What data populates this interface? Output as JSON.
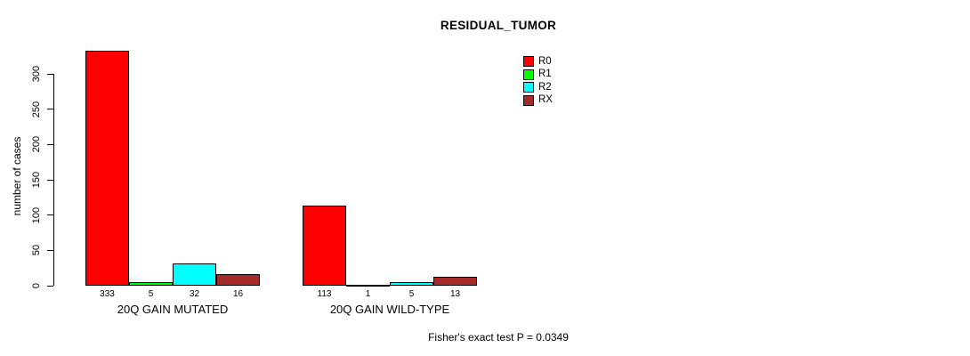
{
  "chart_data": {
    "type": "bar",
    "title": "RESIDUAL_TUMOR",
    "ylabel": "number of cases",
    "ylim": [
      0,
      300
    ],
    "yticks": [
      0,
      50,
      100,
      150,
      200,
      250,
      300
    ],
    "grid": false,
    "legend_position": "top-center-right",
    "series": [
      {
        "name": "R0",
        "color": "#ff0000",
        "values": [
          333,
          113
        ]
      },
      {
        "name": "R1",
        "color": "#00ff00",
        "values": [
          5,
          1
        ]
      },
      {
        "name": "R2",
        "color": "#00ffff",
        "values": [
          32,
          5
        ]
      },
      {
        "name": "RX",
        "color": "#a52a2a",
        "values": [
          16,
          13
        ]
      }
    ],
    "categories": [
      "20Q GAIN MUTATED",
      "20Q GAIN WILD-TYPE"
    ],
    "bar_value_labels": [
      [
        "333",
        "5",
        "32",
        "16"
      ],
      [
        "113",
        "1",
        "5",
        "13"
      ]
    ],
    "caption": "Fisher's exact test P = 0.0349"
  }
}
